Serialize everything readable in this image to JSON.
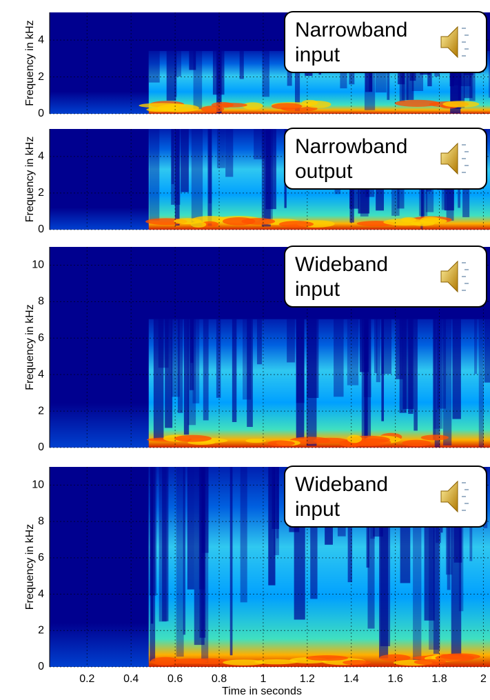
{
  "chart_data": [
    {
      "type": "spectrogram",
      "ylabel": "Frequency in kHz",
      "annotation": [
        "Narrowband",
        "input"
      ],
      "xlim": [
        0.03,
        2.03
      ],
      "xticks": [
        0.2,
        0.4,
        0.6,
        0.8,
        1,
        1.2,
        1.4,
        1.6,
        1.8,
        2
      ],
      "ylim": [
        0,
        5.5
      ],
      "yticks": [
        0,
        2,
        4
      ],
      "grid": true
    },
    {
      "type": "spectrogram",
      "ylabel": "Frequency in kHz",
      "annotation": [
        "Narrowband",
        "output"
      ],
      "xlim": [
        0.03,
        2.03
      ],
      "xticks": [
        0.2,
        0.4,
        0.6,
        0.8,
        1,
        1.2,
        1.4,
        1.6,
        1.8,
        2
      ],
      "ylim": [
        0,
        5.5
      ],
      "yticks": [
        0,
        2,
        4
      ],
      "grid": true
    },
    {
      "type": "spectrogram",
      "ylabel": "Frequency in kHz",
      "annotation": [
        "Wideband",
        "input"
      ],
      "xlim": [
        0.03,
        2.03
      ],
      "xticks": [
        0.2,
        0.4,
        0.6,
        0.8,
        1,
        1.2,
        1.4,
        1.6,
        1.8,
        2
      ],
      "ylim": [
        0,
        11
      ],
      "yticks": [
        0,
        2,
        4,
        6,
        8,
        10
      ],
      "grid": true
    },
    {
      "type": "spectrogram",
      "ylabel": "Frequency in kHz",
      "annotation": [
        "Wideband",
        "input"
      ],
      "xlim": [
        0.03,
        2.03
      ],
      "xticks": [
        0.2,
        0.4,
        0.6,
        0.8,
        1,
        1.2,
        1.4,
        1.6,
        1.8,
        2
      ],
      "ylim": [
        0,
        11
      ],
      "yticks": [
        0,
        2,
        4,
        6,
        8,
        10
      ],
      "grid": true,
      "xlabel": "Time in seconds"
    }
  ]
}
